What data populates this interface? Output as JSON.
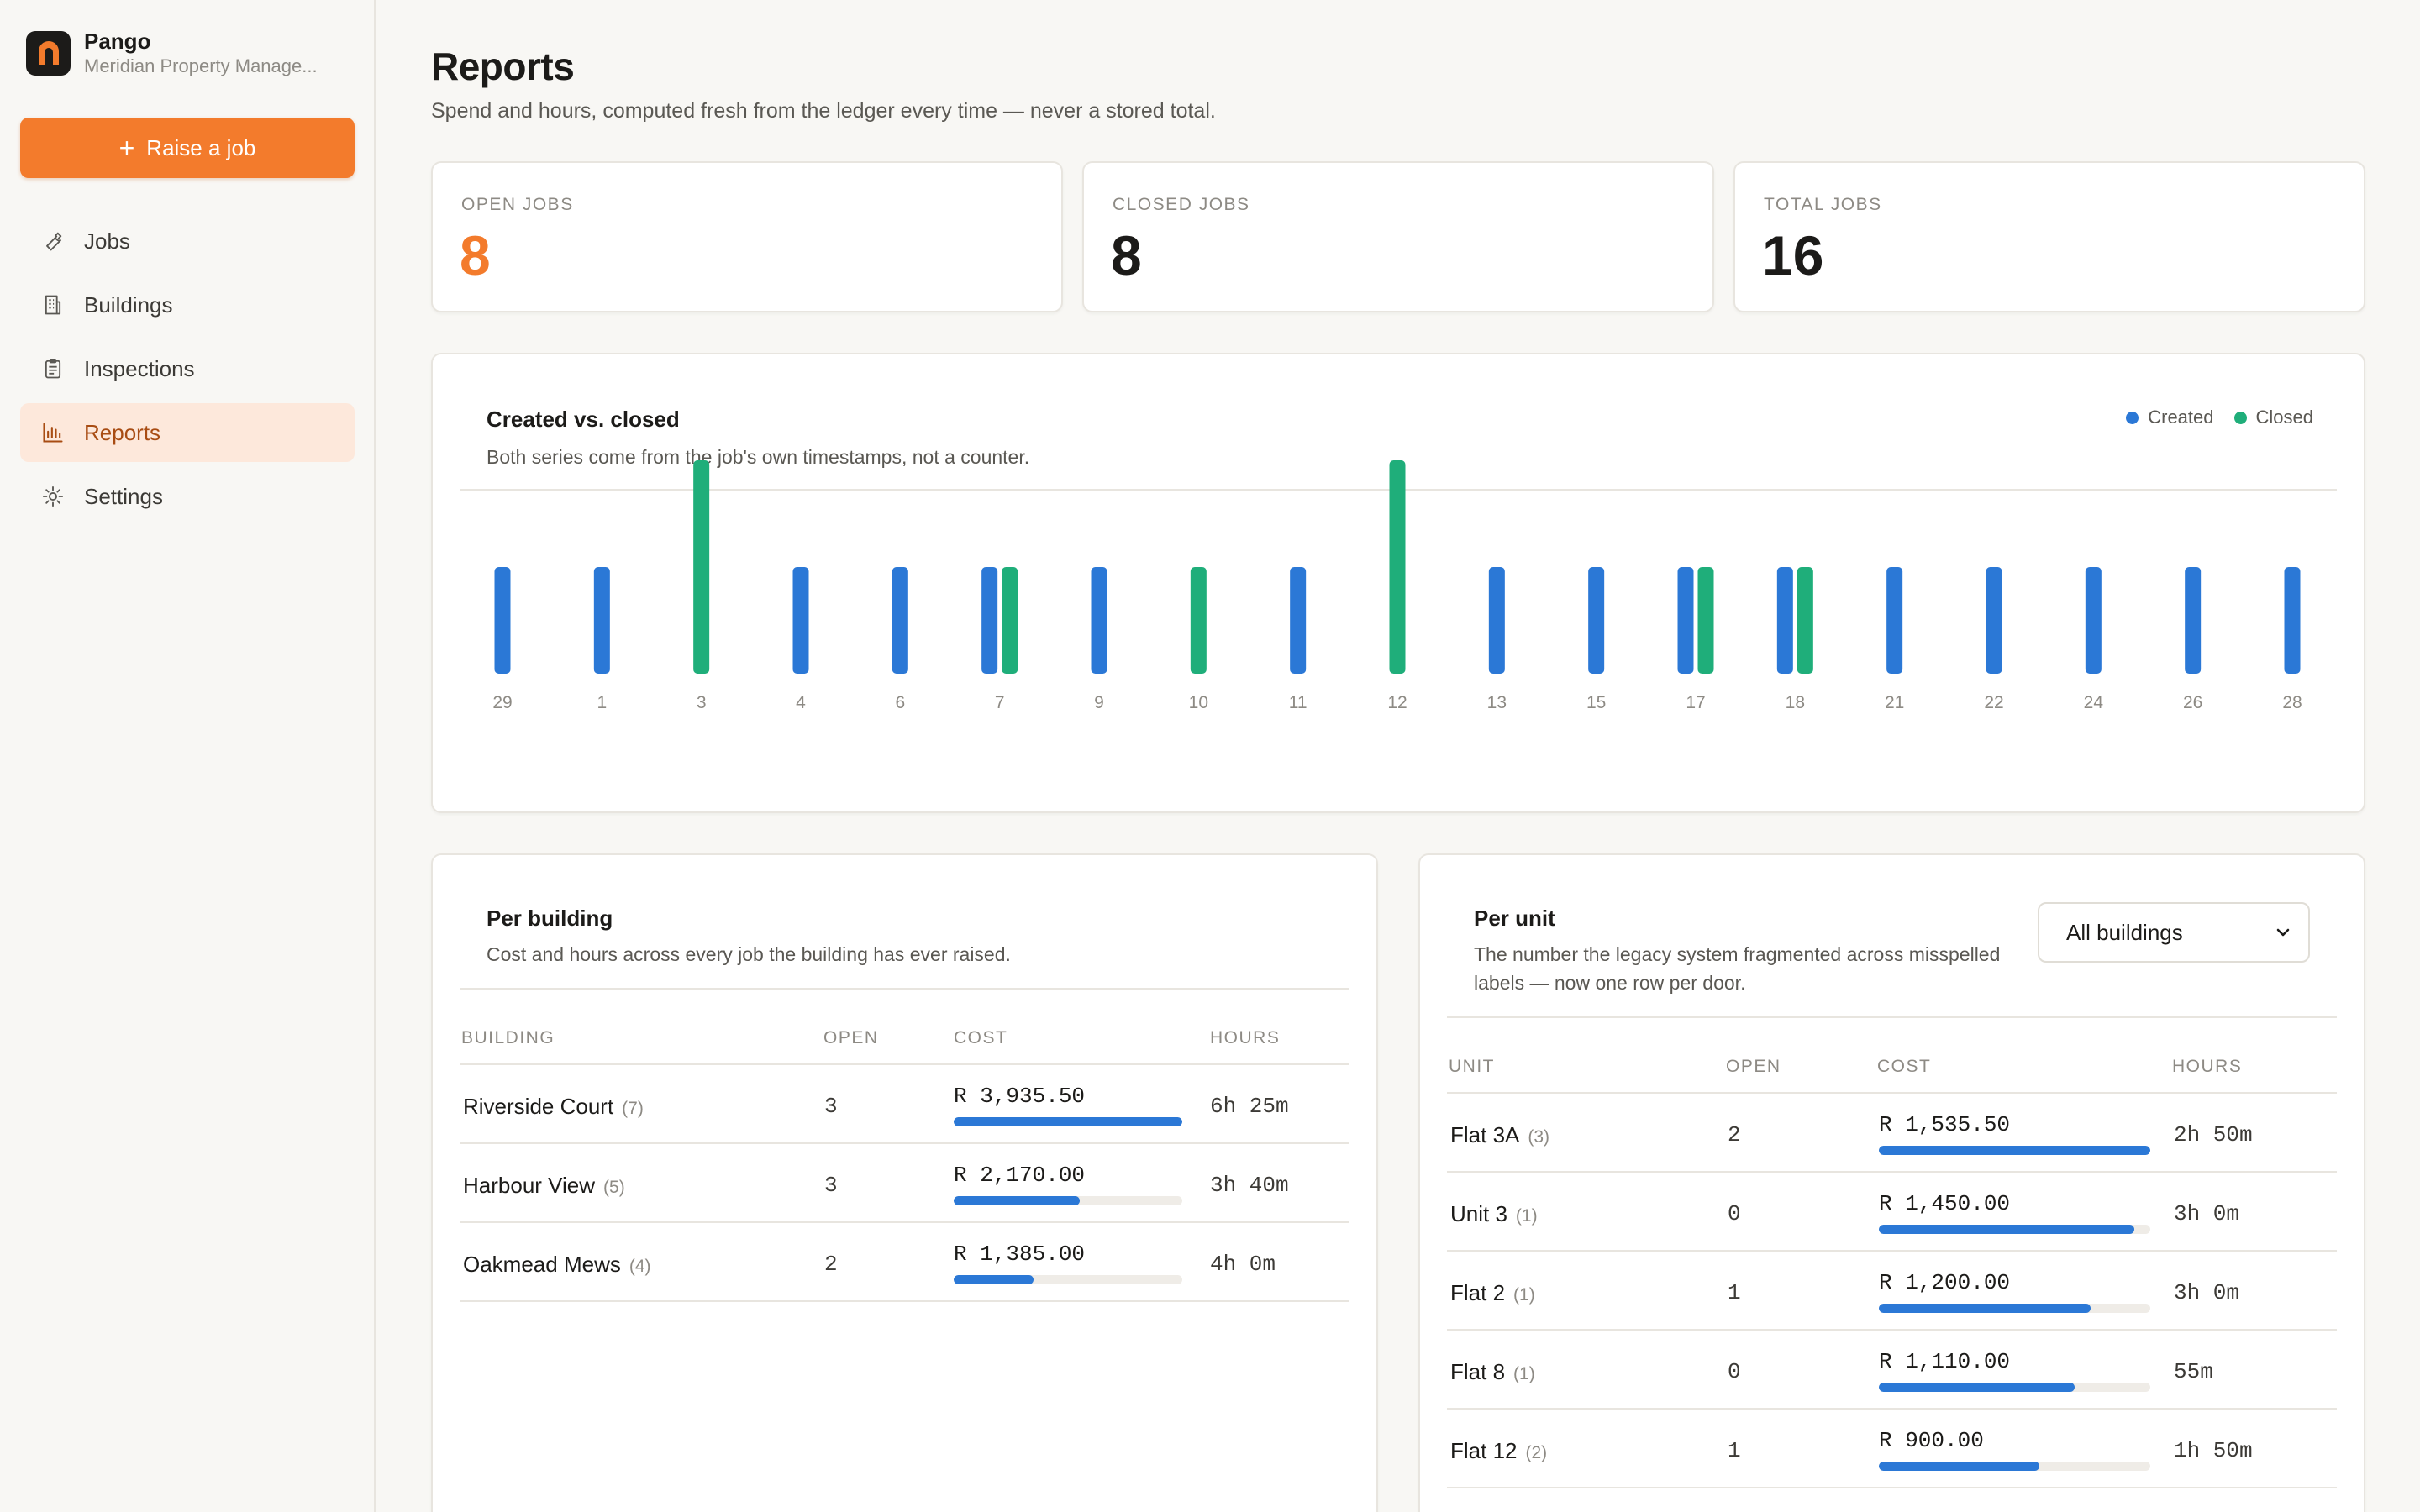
{
  "brand": {
    "name": "Pango",
    "org": "Meridian Property Manage..."
  },
  "sidebar": {
    "raise_label": "Raise a job",
    "items": [
      {
        "label": "Jobs",
        "icon": "wrench-icon"
      },
      {
        "label": "Buildings",
        "icon": "building-icon"
      },
      {
        "label": "Inspections",
        "icon": "clipboard-icon"
      },
      {
        "label": "Reports",
        "icon": "bar-chart-icon",
        "active": true
      },
      {
        "label": "Settings",
        "icon": "gear-icon"
      }
    ]
  },
  "page": {
    "title": "Reports",
    "subtitle": "Spend and hours, computed fresh from the ledger every time — never a stored total."
  },
  "stats": [
    {
      "label": "OPEN JOBS",
      "value": "8"
    },
    {
      "label": "CLOSED JOBS",
      "value": "8"
    },
    {
      "label": "TOTAL JOBS",
      "value": "16"
    }
  ],
  "chart": {
    "title": "Created vs. closed",
    "subtitle": "Both series come from the job's own timestamps, not a counter.",
    "legend_created": "Created",
    "legend_closed": "Closed"
  },
  "chart_data": {
    "type": "bar",
    "categories": [
      "29",
      "1",
      "3",
      "4",
      "6",
      "7",
      "9",
      "10",
      "11",
      "12",
      "13",
      "15",
      "17",
      "18",
      "21",
      "22",
      "24",
      "26",
      "28"
    ],
    "series": [
      {
        "name": "Created",
        "color": "#2b78d6",
        "values": [
          1,
          1,
          0,
          1,
          1,
          1,
          1,
          0,
          1,
          0,
          1,
          1,
          1,
          1,
          1,
          1,
          1,
          1,
          1
        ]
      },
      {
        "name": "Closed",
        "color": "#1fae7a",
        "values": [
          0,
          0,
          2,
          0,
          0,
          1,
          0,
          1,
          0,
          2,
          0,
          0,
          1,
          1,
          0,
          0,
          0,
          0,
          0
        ]
      }
    ]
  },
  "per_building": {
    "title": "Per building",
    "subtitle": "Cost and hours across every job the building has ever raised.",
    "headers": {
      "name": "BUILDING",
      "open": "OPEN",
      "cost": "COST",
      "hours": "HOURS"
    },
    "rows": [
      {
        "name": "Riverside Court",
        "count": "(7)",
        "open": "3",
        "cost": "R 3,935.50",
        "fill": 1.0,
        "hours": "6h 25m"
      },
      {
        "name": "Harbour View",
        "count": "(5)",
        "open": "3",
        "cost": "R 2,170.00",
        "fill": 0.55,
        "hours": "3h 40m"
      },
      {
        "name": "Oakmead Mews",
        "count": "(4)",
        "open": "2",
        "cost": "R 1,385.00",
        "fill": 0.35,
        "hours": "4h 0m"
      }
    ]
  },
  "per_unit": {
    "title": "Per unit",
    "subtitle": "The number the legacy system fragmented across misspelled labels — now one row per door.",
    "filter_value": "All buildings",
    "headers": {
      "name": "UNIT",
      "open": "OPEN",
      "cost": "COST",
      "hours": "HOURS"
    },
    "rows": [
      {
        "name": "Flat 3A",
        "count": "(3)",
        "open": "2",
        "cost": "R 1,535.50",
        "fill": 1.0,
        "hours": "2h 50m"
      },
      {
        "name": "Unit 3",
        "count": "(1)",
        "open": "0",
        "cost": "R 1,450.00",
        "fill": 0.94,
        "hours": "3h 0m"
      },
      {
        "name": "Flat 2",
        "count": "(1)",
        "open": "1",
        "cost": "R 1,200.00",
        "fill": 0.78,
        "hours": "3h 0m"
      },
      {
        "name": "Flat 8",
        "count": "(1)",
        "open": "0",
        "cost": "R 1,110.00",
        "fill": 0.72,
        "hours": "55m"
      },
      {
        "name": "Flat 12",
        "count": "(2)",
        "open": "1",
        "cost": "R 900.00",
        "fill": 0.59,
        "hours": "1h 50m"
      }
    ]
  }
}
